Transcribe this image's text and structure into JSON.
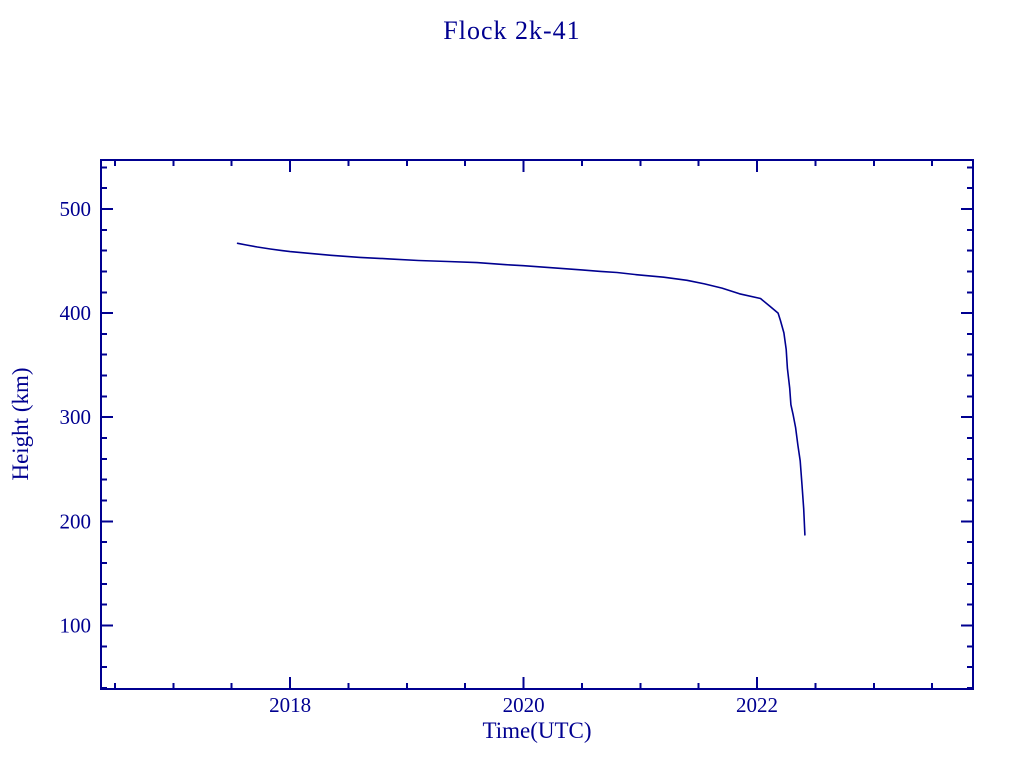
{
  "page": {
    "background_color": "#ffffff",
    "accent_color": "#000090"
  },
  "chart_data": {
    "type": "line",
    "title": "Flock 2k-41",
    "xlabel": "Time(UTC)",
    "ylabel": "Height (km)",
    "xlim": [
      2016.38,
      2023.85
    ],
    "ylim": [
      39,
      547
    ],
    "x_major_ticks": [
      2018,
      2020,
      2022
    ],
    "x_major_tick_labels": [
      "2018",
      "2020",
      "2022"
    ],
    "x_minor_tick_start": 2016.5,
    "x_minor_tick_end": 2023.5,
    "x_minor_tick_step": 0.5,
    "y_major_ticks": [
      100,
      200,
      300,
      400,
      500
    ],
    "y_major_tick_labels": [
      "100",
      "200",
      "300",
      "400",
      "500"
    ],
    "y_minor_tick_start": 40,
    "y_minor_tick_end": 540,
    "y_minor_tick_step": 20,
    "grid": false,
    "legend": "none",
    "line_color": "#000090",
    "frame_color": "#000090",
    "text_color": "#000090",
    "series": [
      {
        "name": "Flock 2k-41 height",
        "points": [
          [
            2017.55,
            467.0
          ],
          [
            2017.62,
            465.5
          ],
          [
            2017.72,
            463.5
          ],
          [
            2017.83,
            461.5
          ],
          [
            2017.93,
            460.0
          ],
          [
            2018.0,
            459.0
          ],
          [
            2018.15,
            457.5
          ],
          [
            2018.35,
            455.5
          ],
          [
            2018.6,
            453.5
          ],
          [
            2018.85,
            452.0
          ],
          [
            2019.1,
            450.5
          ],
          [
            2019.35,
            449.5
          ],
          [
            2019.6,
            448.5
          ],
          [
            2019.85,
            446.5
          ],
          [
            2020.0,
            445.5
          ],
          [
            2020.25,
            443.5
          ],
          [
            2020.5,
            441.5
          ],
          [
            2020.66,
            440.0
          ],
          [
            2020.8,
            439.0
          ],
          [
            2021.0,
            436.5
          ],
          [
            2021.2,
            434.5
          ],
          [
            2021.4,
            431.5
          ],
          [
            2021.55,
            428.0
          ],
          [
            2021.7,
            424.0
          ],
          [
            2021.85,
            418.5
          ],
          [
            2022.03,
            414.0
          ],
          [
            2022.11,
            406.5
          ],
          [
            2022.18,
            400.0
          ],
          [
            2022.2,
            393.0
          ],
          [
            2022.23,
            381.0
          ],
          [
            2022.25,
            365.0
          ],
          [
            2022.26,
            347.0
          ],
          [
            2022.28,
            328.0
          ],
          [
            2022.29,
            312.0
          ],
          [
            2022.31,
            302.0
          ],
          [
            2022.33,
            290.0
          ],
          [
            2022.35,
            273.0
          ],
          [
            2022.37,
            258.0
          ],
          [
            2022.385,
            235.0
          ],
          [
            2022.4,
            212.0
          ],
          [
            2022.41,
            187.0
          ]
        ]
      }
    ]
  }
}
